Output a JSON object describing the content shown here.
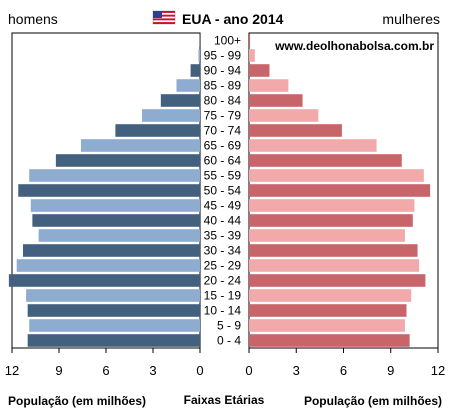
{
  "header": {
    "left_label": "homens",
    "right_label": "mulheres",
    "title": "EUA - ano 2014",
    "flag_icon": "us-flag-icon"
  },
  "source": "www.deolhonabolsa.com.br",
  "axis": {
    "left_title": "População (em milhões)",
    "center_title": "Faixas Etárias",
    "right_title": "População (em milhões)"
  },
  "chart_data": {
    "type": "bar",
    "orientation": "horizontal",
    "subtype": "population-pyramid",
    "title": "EUA - ano 2014",
    "categories": [
      "100+",
      "95 - 99",
      "90 - 94",
      "85 - 89",
      "80 - 84",
      "75 - 79",
      "70 - 74",
      "65 - 69",
      "60 - 64",
      "55 - 59",
      "50 - 54",
      "45 - 49",
      "40 - 44",
      "35 - 39",
      "30 - 34",
      "25 - 29",
      "20 - 24",
      "15 - 19",
      "10 - 14",
      "5 - 9",
      "0 - 4"
    ],
    "series": [
      {
        "name": "homens",
        "values": [
          0.02,
          0.1,
          0.6,
          1.5,
          2.5,
          3.7,
          5.4,
          7.6,
          9.2,
          10.9,
          11.6,
          10.8,
          10.7,
          10.3,
          11.3,
          11.7,
          12.2,
          11.1,
          11.0,
          10.9,
          11.0
        ]
      },
      {
        "name": "mulheres",
        "values": [
          0.07,
          0.37,
          1.3,
          2.5,
          3.4,
          4.4,
          5.9,
          8.1,
          9.7,
          11.1,
          11.5,
          10.5,
          10.4,
          9.9,
          10.7,
          10.8,
          11.2,
          10.3,
          10.0,
          9.9,
          10.2
        ]
      }
    ],
    "xlim": [
      0,
      12
    ],
    "xticks": [
      12,
      9,
      6,
      3,
      0
    ],
    "xticks_right": [
      0,
      3,
      6,
      9,
      12
    ],
    "colors": {
      "men_dark": "#43607f",
      "men_light": "#8eacd0",
      "women_dark": "#c8656a",
      "women_light": "#f1a9a9"
    }
  }
}
